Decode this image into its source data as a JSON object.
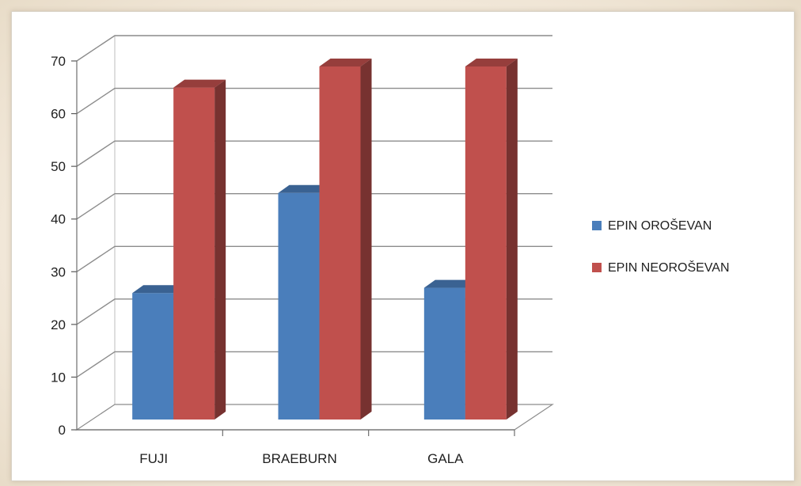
{
  "chart_data": {
    "type": "bar",
    "categories": [
      "FUJI",
      "BRAEBURN",
      "GALA"
    ],
    "series": [
      {
        "name": "EPIN OROŠEVAN",
        "values": [
          24,
          43,
          25
        ],
        "color": "#4a7ebb"
      },
      {
        "name": "EPIN NEOROŠEVAN",
        "values": [
          63,
          67,
          67
        ],
        "color": "#c0504d"
      }
    ],
    "yticks": [
      0,
      10,
      20,
      30,
      40,
      50,
      60,
      70
    ],
    "ylim": [
      0,
      70
    ],
    "grid": true,
    "legend": "right",
    "style": "3d-clustered-column"
  }
}
